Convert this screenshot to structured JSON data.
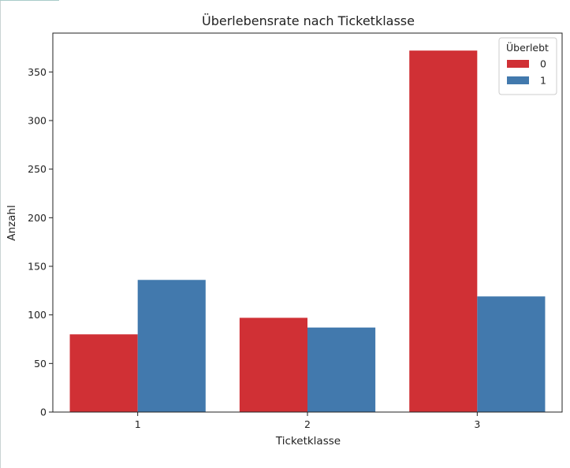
{
  "chart_data": {
    "type": "bar",
    "title": "Überlebensrate nach Ticketklasse",
    "xlabel": "Ticketklasse",
    "ylabel": "Anzahl",
    "categories": [
      "1",
      "2",
      "3"
    ],
    "series": [
      {
        "name": "0",
        "color": "#d03035",
        "values": [
          80,
          97,
          372
        ]
      },
      {
        "name": "1",
        "color": "#4279ad",
        "values": [
          136,
          87,
          119
        ]
      }
    ],
    "ylim": [
      0,
      390
    ],
    "yticks": [
      0,
      50,
      100,
      150,
      200,
      250,
      300,
      350
    ],
    "grid": false,
    "legend": {
      "title": "Überlebt",
      "placement": "top-right"
    }
  }
}
